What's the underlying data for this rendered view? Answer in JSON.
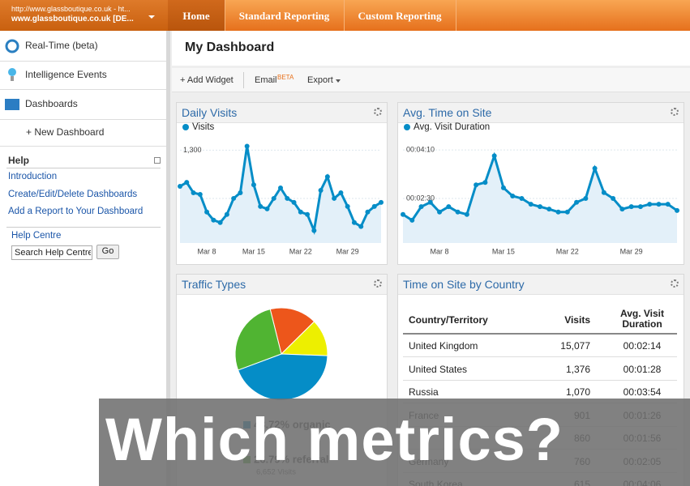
{
  "header": {
    "site_url": "http://www.glassboutique.co.uk - ht...",
    "site_name": "www.glassboutique.co.uk [DE...",
    "tabs": [
      "Home",
      "Standard Reporting",
      "Custom Reporting"
    ]
  },
  "sidebar": {
    "items": [
      "Real-Time (beta)",
      "Intelligence Events",
      "Dashboards"
    ],
    "new_dashboard": "+ New Dashboard",
    "help_title": "Help",
    "help_links": [
      "Introduction",
      "Create/Edit/Delete Dashboards",
      "Add a Report to Your Dashboard"
    ],
    "help_centre": "Help Centre",
    "search_placeholder": "Search Help Centre",
    "search_button": "Go"
  },
  "dashboard": {
    "title": "My Dashboard",
    "toolbar": {
      "add_widget": "+ Add Widget",
      "email": "Email",
      "email_badge": "BETA",
      "export": "Export"
    }
  },
  "chart_data": [
    {
      "type": "line",
      "title": "Daily Visits",
      "categories": [
        null,
        null,
        null,
        null,
        "Mar 8",
        null,
        null,
        null,
        null,
        null,
        null,
        "Mar 15",
        null,
        null,
        null,
        null,
        null,
        null,
        "Mar 22",
        null,
        null,
        null,
        null,
        null,
        null,
        "Mar 29",
        null,
        null,
        null,
        null,
        null
      ],
      "series": [
        {
          "name": "Visits",
          "color": "#058dc7",
          "values": [
            1000,
            1033,
            947,
            933,
            787,
            720,
            700,
            767,
            900,
            947,
            1333,
            1013,
            833,
            813,
            900,
            987,
            900,
            867,
            787,
            767,
            633,
            967,
            1080,
            900,
            947,
            833,
            700,
            667,
            787,
            833,
            867
          ]
        }
      ],
      "ylim": [
        530,
        1370
      ],
      "yticks": [
        {
          "value": 1300,
          "label": "1,300"
        },
        900
      ],
      "grid": true
    },
    {
      "type": "line",
      "title": "Avg. Time on Site",
      "categories": [
        null,
        null,
        null,
        null,
        "Mar 8",
        null,
        null,
        null,
        null,
        null,
        null,
        "Mar 15",
        null,
        null,
        null,
        null,
        null,
        null,
        "Mar 22",
        null,
        null,
        null,
        null,
        null,
        null,
        "Mar 29",
        null,
        null,
        null,
        null,
        null
      ],
      "series": [
        {
          "name": "Avg. Visit Duration",
          "color": "#058dc7",
          "values": [
            117,
            105,
            133,
            142,
            122,
            133,
            122,
            117,
            178,
            183,
            238,
            172,
            155,
            150,
            138,
            133,
            128,
            122,
            122,
            142,
            150,
            212,
            162,
            150,
            128,
            133,
            133,
            138,
            138,
            138,
            125
          ]
        }
      ],
      "ylim": [
        58,
        267
      ],
      "yticks": [
        {
          "value": 250,
          "label": "00:04:10"
        },
        {
          "value": 150,
          "label": "00:02:30"
        }
      ],
      "grid": true
    },
    {
      "type": "pie",
      "title": "Traffic Types",
      "values": [
        16.5,
        12.99,
        43.72,
        26.79
      ],
      "colors": [
        "#ed561b",
        "#edef00",
        "#058dc7",
        "#50b432"
      ],
      "value_labels": [
        null,
        null,
        "43.72% organic",
        "26.79% referral"
      ],
      "visit_labels": [
        null,
        null,
        null,
        "6,652 Visits"
      ]
    }
  ],
  "table": {
    "title": "Time on Site by Country",
    "columns": [
      "Country/Territory",
      "Visits",
      "Avg. Visit Duration"
    ],
    "rows": [
      [
        "United Kingdom",
        "15,077",
        "00:02:14"
      ],
      [
        "United States",
        "1,376",
        "00:01:28"
      ],
      [
        "Russia",
        "1,070",
        "00:03:54"
      ],
      [
        "France",
        "901",
        "00:01:26"
      ],
      [
        null,
        "860",
        "00:01:56"
      ],
      [
        "Germany",
        "760",
        "00:02:05"
      ],
      [
        "South Korea",
        "615",
        "00:04:06"
      ]
    ]
  },
  "overlay": {
    "text": "Which metrics?"
  }
}
